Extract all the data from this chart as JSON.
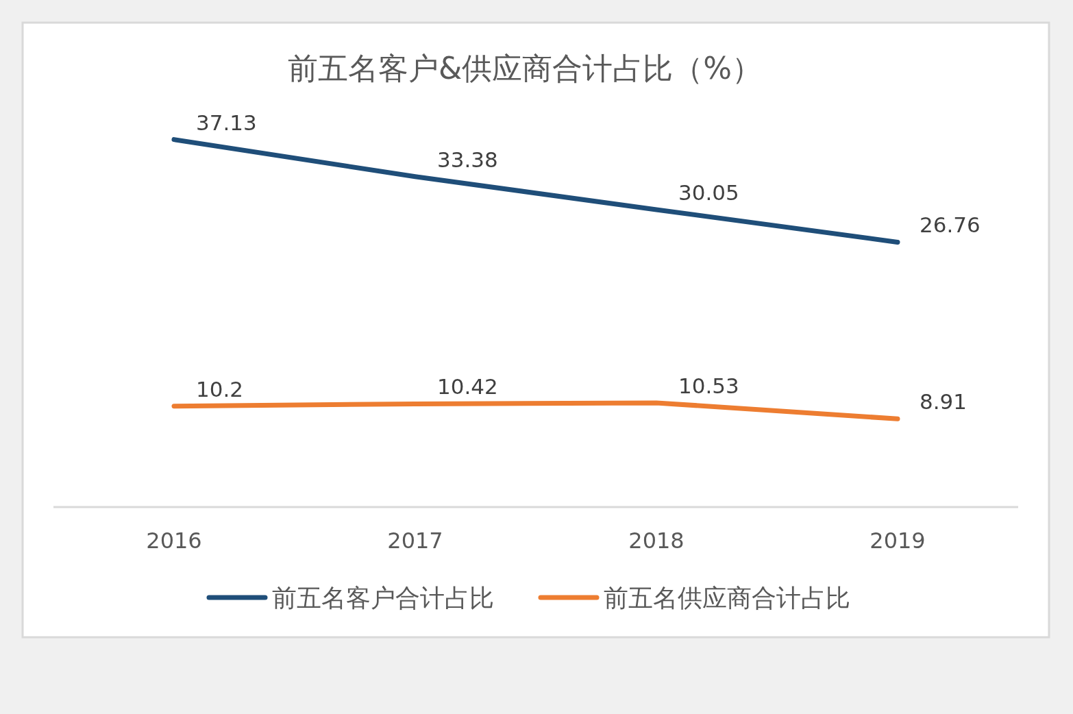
{
  "chart_data": {
    "type": "line",
    "title": "前五名客户&供应商合计占比（%）",
    "categories": [
      "2016",
      "2017",
      "2018",
      "2019"
    ],
    "series": [
      {
        "name": "前五名客户合计占比",
        "color": "#1f4e79",
        "values": [
          37.13,
          33.38,
          30.05,
          26.76
        ]
      },
      {
        "name": "前五名供应商合计占比",
        "color": "#ed7d31",
        "values": [
          10.2,
          10.42,
          10.53,
          8.91
        ]
      }
    ],
    "data_labels": true,
    "legend": "bottom",
    "grid": false,
    "marker": "none",
    "line_style": "solid"
  }
}
